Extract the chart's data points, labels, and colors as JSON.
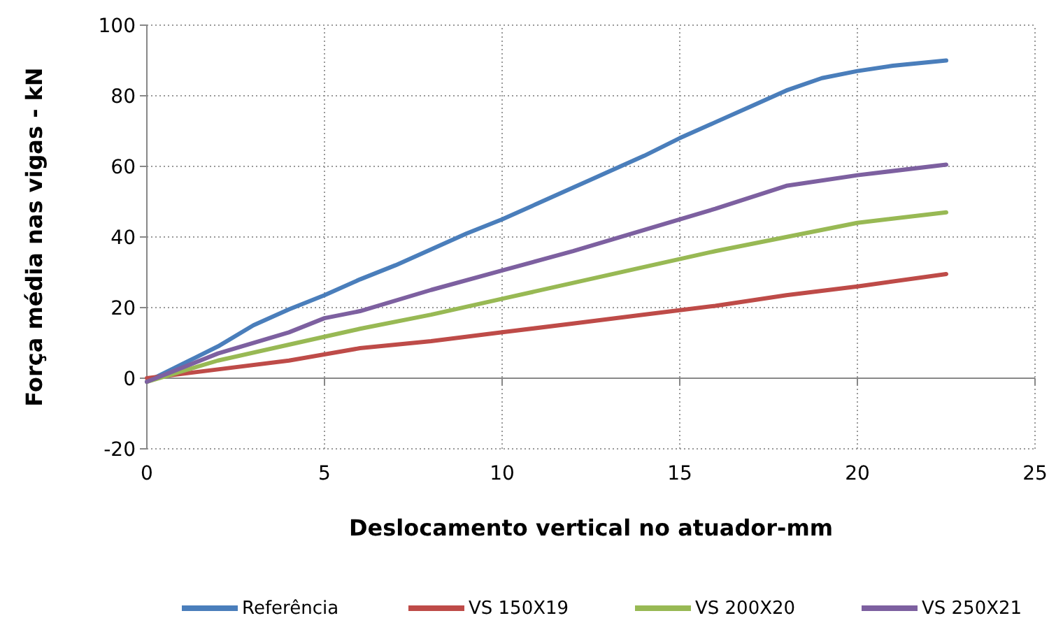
{
  "chart_data": {
    "type": "line",
    "xlabel": "Deslocamento vertical no atuador-mm",
    "ylabel": "Força média nas vigas - kN",
    "xlim": [
      0,
      25
    ],
    "xticks": [
      0,
      5,
      10,
      15,
      20,
      25
    ],
    "ylim": [
      -20,
      100
    ],
    "yticks": [
      -20,
      0,
      20,
      40,
      60,
      80,
      100
    ],
    "grid": true,
    "legend": "bottom",
    "marker": "none",
    "line_style": "solid",
    "series": [
      {
        "name": "Referência",
        "color": "#4a7ebb",
        "x": [
          0,
          1,
          2,
          3,
          4,
          5,
          6,
          7,
          8,
          9,
          10,
          11,
          12,
          13,
          14,
          15,
          16,
          17,
          18,
          19,
          20,
          21,
          22.5
        ],
        "values": [
          -1,
          4,
          9,
          15,
          19.5,
          23.5,
          28,
          32,
          36.5,
          41,
          45,
          49.5,
          54,
          58.5,
          63,
          68,
          72.5,
          77,
          81.5,
          85,
          87,
          88.5,
          90
        ]
      },
      {
        "name": "VS 150X19",
        "color": "#be4b48",
        "x": [
          0,
          2,
          4,
          6,
          8,
          10,
          12,
          14,
          16,
          18,
          20,
          22.5
        ],
        "values": [
          0,
          2.5,
          5,
          8.5,
          10.5,
          13,
          15.5,
          18,
          20.5,
          23.5,
          26,
          29.5
        ]
      },
      {
        "name": "VS 200X20",
        "color": "#98b954",
        "x": [
          0,
          2,
          4,
          6,
          8,
          10,
          12,
          14,
          16,
          18,
          20,
          22.5
        ],
        "values": [
          -1,
          5,
          9.5,
          14,
          18,
          22.5,
          27,
          31.5,
          36,
          40,
          44,
          47
        ]
      },
      {
        "name": "VS 250X21",
        "color": "#7d60a0",
        "x": [
          0,
          2,
          4,
          5,
          6,
          8,
          10,
          12,
          14,
          16,
          18,
          20,
          22.5
        ],
        "values": [
          -1,
          7,
          13,
          17,
          19,
          25,
          30.5,
          36,
          42,
          48,
          54.5,
          57.5,
          60.5
        ]
      }
    ]
  }
}
